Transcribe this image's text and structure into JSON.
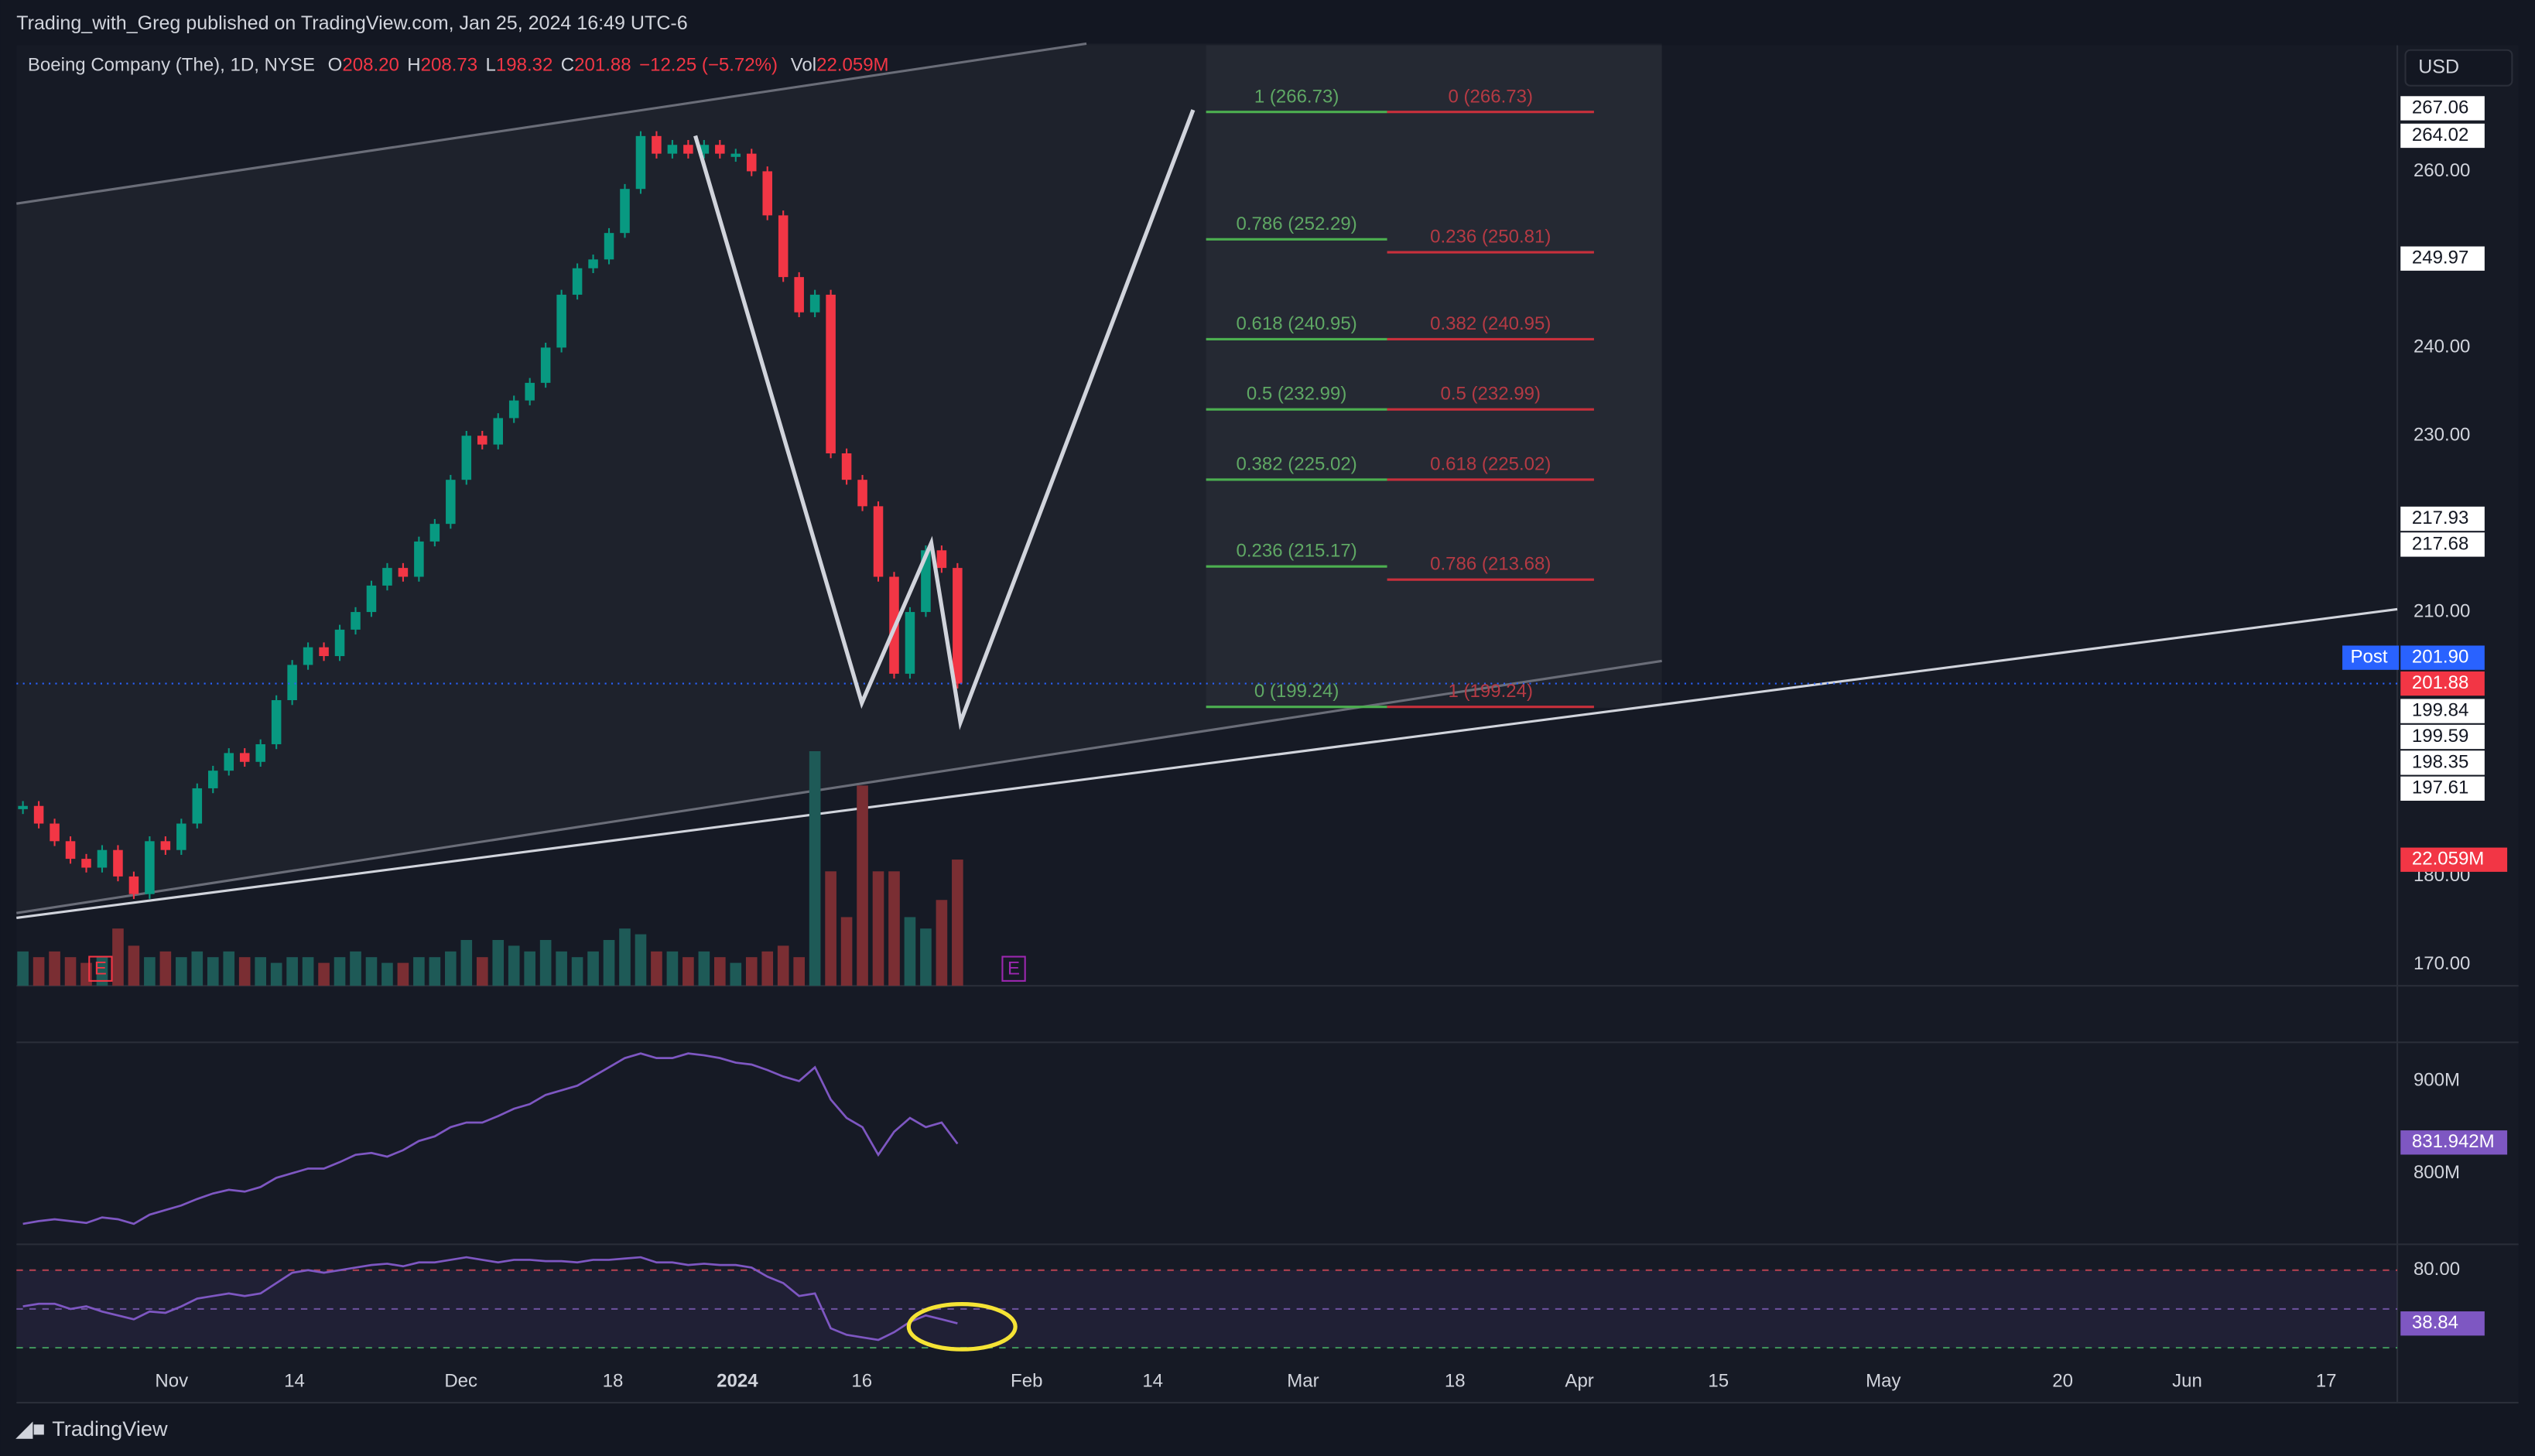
{
  "header": {
    "publisher": "Trading_with_Greg published on TradingView.com, Jan 25, 2024 16:49 UTC-6"
  },
  "legend": {
    "symbol": "Boeing Company (The), 1D, NYSE",
    "items": [
      {
        "key": "O",
        "val": "208.20"
      },
      {
        "key": "H",
        "val": "208.73"
      },
      {
        "key": "L",
        "val": "198.32"
      },
      {
        "key": "C",
        "val": "201.88"
      }
    ],
    "change": "−12.25 (−5.72%)",
    "vol_key": "Vol",
    "vol_val": "22.059M"
  },
  "currency": "USD",
  "chart": {
    "ylim": [
      167.6,
      274.3
    ],
    "price_ticks": [
      {
        "value": 260,
        "label": "260.00"
      },
      {
        "value": 240,
        "label": "240.00"
      },
      {
        "value": 230,
        "label": "230.00"
      },
      {
        "value": 210,
        "label": "210.00"
      },
      {
        "value": 180,
        "label": "180.00"
      },
      {
        "value": 170,
        "label": "170.00"
      }
    ],
    "closes": [
      188,
      186,
      184,
      182,
      181,
      183,
      180,
      178,
      184,
      183,
      186,
      190,
      192,
      194,
      193,
      195,
      200,
      204,
      206,
      205,
      208,
      210,
      213,
      215,
      214,
      218,
      220,
      225,
      230,
      229,
      232,
      234,
      236,
      240,
      246,
      249,
      250,
      253,
      258,
      264,
      262,
      263,
      262,
      263,
      262,
      262,
      260,
      255,
      248,
      244,
      246,
      228,
      225,
      222,
      214,
      203,
      210,
      217,
      215,
      201.88
    ],
    "volumes": [
      6,
      5,
      6,
      5,
      4,
      5,
      10,
      7,
      5,
      6,
      5,
      6,
      5,
      6,
      5,
      5,
      4,
      5,
      5,
      4,
      5,
      6,
      5,
      4,
      4,
      5,
      5,
      6,
      8,
      5,
      8,
      7,
      6,
      8,
      6,
      5,
      6,
      8,
      10,
      9,
      6,
      6,
      5,
      6,
      5,
      4,
      5,
      6,
      7,
      5,
      41,
      20,
      12,
      35,
      20,
      20,
      12,
      10,
      15,
      22.059
    ],
    "obv": [
      745,
      748,
      750,
      748,
      746,
      752,
      750,
      745,
      755,
      760,
      765,
      772,
      778,
      782,
      780,
      785,
      795,
      800,
      805,
      805,
      812,
      820,
      822,
      818,
      825,
      835,
      840,
      850,
      855,
      855,
      862,
      870,
      875,
      885,
      890,
      895,
      905,
      915,
      925,
      930,
      925,
      925,
      930,
      928,
      925,
      920,
      918,
      912,
      905,
      900,
      915,
      880,
      860,
      850,
      820,
      845,
      860,
      850,
      855,
      831.942
    ],
    "obv_ticks": [
      {
        "value": 900,
        "label": "900M"
      },
      {
        "value": 800,
        "label": "800M"
      }
    ],
    "rsi": [
      52,
      54,
      54,
      50,
      52,
      48,
      45,
      42,
      48,
      47,
      52,
      58,
      60,
      62,
      60,
      62,
      70,
      78,
      80,
      78,
      80,
      82,
      84,
      85,
      83,
      86,
      86,
      88,
      90,
      88,
      86,
      88,
      88,
      87,
      87,
      86,
      88,
      88,
      89,
      90,
      86,
      86,
      84,
      85,
      84,
      84,
      82,
      75,
      70,
      60,
      62,
      35,
      30,
      28,
      26,
      32,
      40,
      45,
      42,
      38.84
    ],
    "rsi_ticks": [
      {
        "value": 80,
        "label": "80.00"
      }
    ],
    "fib_left": [
      {
        "label": "1 (266.73)",
        "value": 266.73
      },
      {
        "label": "0.786 (252.29)",
        "value": 252.29
      },
      {
        "label": "0.618 (240.95)",
        "value": 240.95
      },
      {
        "label": "0.5 (232.99)",
        "value": 232.99
      },
      {
        "label": "0.382 (225.02)",
        "value": 225.02
      },
      {
        "label": "0.236 (215.17)",
        "value": 215.17
      },
      {
        "label": "0 (199.24)",
        "value": 199.24
      }
    ],
    "fib_right": [
      {
        "label": "0 (266.73)",
        "value": 266.73
      },
      {
        "label": "0.236 (250.81)",
        "value": 250.81
      },
      {
        "label": "0.382 (240.95)",
        "value": 240.95
      },
      {
        "label": "0.5 (232.99)",
        "value": 232.99
      },
      {
        "label": "0.618 (225.02)",
        "value": 225.02
      },
      {
        "label": "0.786 (213.68)",
        "value": 213.68
      },
      {
        "label": "1 (199.24)",
        "value": 199.24
      }
    ],
    "price_tags": [
      "267.06",
      "264.02",
      "249.97",
      "217.93",
      "217.68",
      "201.90",
      "201.88",
      "199.84",
      "199.59",
      "198.35",
      "197.61",
      "22.059M",
      "831.942M",
      "38.84"
    ],
    "post_label": "Post",
    "earnings_marks": [
      "E",
      "E"
    ],
    "time_labels": [
      "Nov",
      "14",
      "Dec",
      "18",
      "2024",
      "16",
      "Feb",
      "14",
      "Mar",
      "18",
      "Apr",
      "15",
      "May",
      "20",
      "Jun",
      "17"
    ]
  },
  "footer": {
    "brand": "TradingView"
  }
}
